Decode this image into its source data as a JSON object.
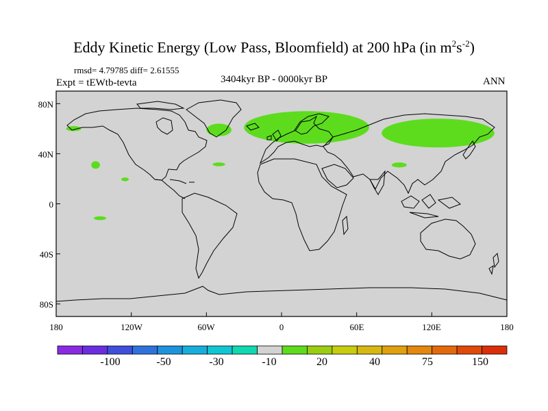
{
  "title": {
    "main": "Eddy Kinetic Energy (Low Pass, Bloomfield) at 200 hPa (in m",
    "exp1": "2",
    "mid": "s",
    "exp2": "-2",
    "end": ")"
  },
  "stats": "rmsd= 4.79785  diff= 2.61555",
  "expt": "Expt = tEWtb-tevta",
  "period": "3404kyr BP - 0000kyr BP",
  "season": "ANN",
  "colors": {
    "land_bg": "#d3d3d3",
    "positive_anomaly": "#5ddc1e",
    "coast": "#000000"
  },
  "map": {
    "lon_range": [
      -180,
      180
    ],
    "lat_range": [
      -90,
      90
    ],
    "y_ticks": [
      "80N",
      "40N",
      "0",
      "40S",
      "80S"
    ],
    "x_ticks": [
      "180",
      "120W",
      "60W",
      "0",
      "60E",
      "120E",
      "180"
    ]
  },
  "anomaly_regions": [
    {
      "name": "north-atlantic-europe",
      "lon_min": -30,
      "lon_max": 70,
      "lat_min": 48,
      "lat_max": 74
    },
    {
      "name": "labrador-sea",
      "lon_min": -60,
      "lon_max": -40,
      "lat_min": 54,
      "lat_max": 64
    },
    {
      "name": "alaska",
      "lon_min": -172,
      "lon_max": -160,
      "lat_min": 58,
      "lat_max": 62
    },
    {
      "name": "siberia-west-pacific",
      "lon_min": 80,
      "lon_max": 170,
      "lat_min": 45,
      "lat_max": 68
    },
    {
      "name": "central-pacific",
      "lon_min": -152,
      "lon_max": -145,
      "lat_min": 28,
      "lat_max": 34
    },
    {
      "name": "east-pacific",
      "lon_min": -128,
      "lon_max": -122,
      "lat_min": 18,
      "lat_max": 21
    },
    {
      "name": "mid-atlantic",
      "lon_min": -55,
      "lon_max": -45,
      "lat_min": 30,
      "lat_max": 33
    },
    {
      "name": "central-asia",
      "lon_min": 88,
      "lon_max": 100,
      "lat_min": 29,
      "lat_max": 33
    },
    {
      "name": "south-pacific",
      "lon_min": -150,
      "lon_max": -140,
      "lat_min": -13,
      "lat_max": -10
    }
  ],
  "colorbar": {
    "colors": [
      "#8a2be2",
      "#6a2edf",
      "#3f4fdc",
      "#2f72dc",
      "#1f92dc",
      "#17aedc",
      "#10c7d1",
      "#10d8b0",
      "#d3d3d3",
      "#5ddc1e",
      "#9acd12",
      "#c7cc10",
      "#d6b812",
      "#e0a010",
      "#e3870e",
      "#e26a0c",
      "#df4a0a",
      "#d9300a"
    ],
    "labels": [
      "-100",
      "-50",
      "-30",
      "-10",
      "20",
      "40",
      "75",
      "150"
    ]
  }
}
